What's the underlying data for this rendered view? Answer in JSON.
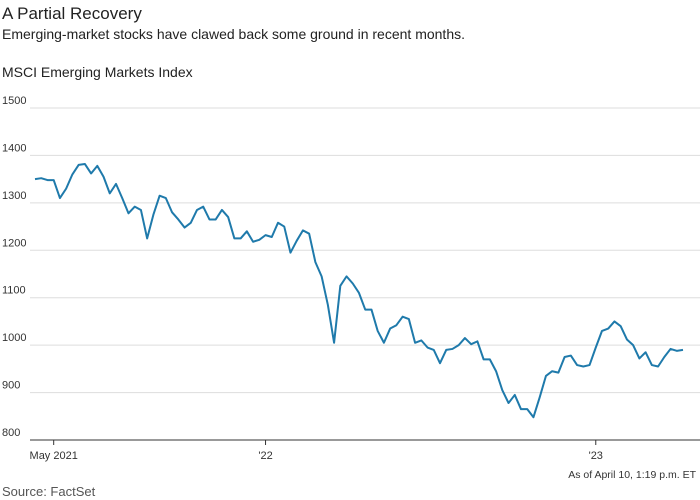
{
  "chart_data": {
    "type": "line",
    "title": "A Partial Recovery",
    "subtitle": "Emerging-market stocks have clawed back some ground in recent months.",
    "y_label": "MSCI Emerging Markets Index",
    "note": "As of April 10, 1:19 p.m. ET",
    "source": "Source: FactSet",
    "color": "#1f7aab",
    "categories": [
      null,
      null,
      null,
      "May 2021",
      null,
      null,
      null,
      null,
      null,
      null,
      null,
      null,
      null,
      null,
      null,
      null,
      null,
      null,
      null,
      null,
      null,
      null,
      null,
      null,
      null,
      null,
      null,
      null,
      null,
      null,
      null,
      null,
      null,
      null,
      null,
      null,
      null,
      "'22",
      null,
      null,
      null,
      null,
      null,
      null,
      null,
      null,
      null,
      null,
      null,
      null,
      null,
      null,
      null,
      null,
      null,
      null,
      null,
      null,
      null,
      null,
      null,
      null,
      null,
      null,
      null,
      null,
      null,
      null,
      null,
      null,
      null,
      null,
      null,
      null,
      null,
      null,
      null,
      null,
      null,
      null,
      null,
      null,
      null,
      null,
      null,
      null,
      null,
      null,
      null,
      null,
      "'23",
      null,
      null,
      null,
      null,
      null,
      null,
      null,
      null,
      null,
      null,
      null,
      null,
      null,
      null
    ],
    "values": [
      1350,
      1352,
      1348,
      1348,
      1310,
      1330,
      1360,
      1380,
      1382,
      1362,
      1378,
      1355,
      1320,
      1340,
      1310,
      1278,
      1292,
      1285,
      1225,
      1275,
      1315,
      1310,
      1280,
      1265,
      1248,
      1258,
      1285,
      1292,
      1265,
      1265,
      1285,
      1270,
      1225,
      1225,
      1240,
      1218,
      1222,
      1232,
      1228,
      1258,
      1250,
      1195,
      1220,
      1242,
      1235,
      1175,
      1145,
      1085,
      1005,
      1125,
      1145,
      1130,
      1110,
      1075,
      1075,
      1030,
      1005,
      1035,
      1042,
      1060,
      1055,
      1005,
      1010,
      995,
      990,
      962,
      990,
      992,
      1000,
      1015,
      1002,
      1008,
      970,
      970,
      945,
      905,
      878,
      895,
      865,
      865,
      848,
      890,
      935,
      945,
      942,
      975,
      978,
      958,
      955,
      958,
      995,
      1030,
      1035,
      1050,
      1040,
      1012,
      1000,
      972,
      985,
      958,
      955,
      975,
      992,
      988,
      990
    ],
    "ylim": [
      800,
      1500
    ],
    "yticks": [
      800,
      900,
      1000,
      1100,
      1200,
      1300,
      1400,
      1500
    ],
    "grid": true
  }
}
